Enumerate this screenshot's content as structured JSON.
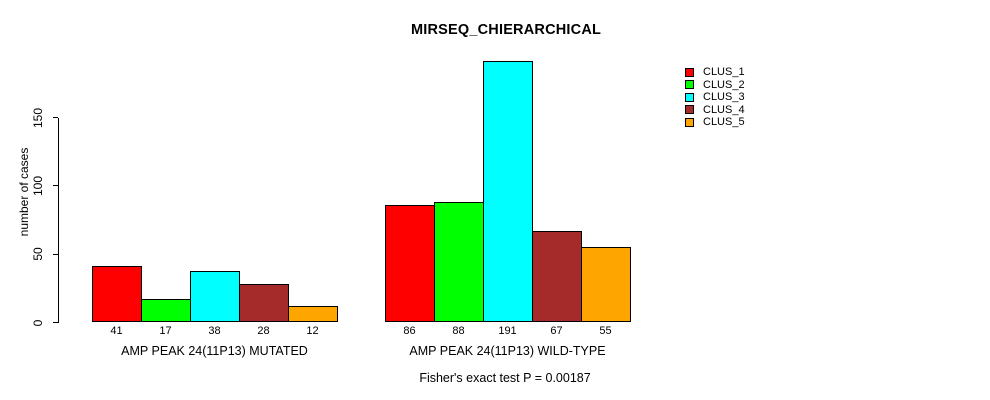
{
  "title": "MIRSEQ_CHIERARCHICAL",
  "y_axis": {
    "label": "number of cases",
    "tick_labels": [
      "0",
      "50",
      "100",
      "150"
    ]
  },
  "footer": "Fisher's exact test P = 0.00187",
  "legend": {
    "position": "right",
    "items": [
      "CLUS_1",
      "CLUS_2",
      "CLUS_3",
      "CLUS_4",
      "CLUS_5"
    ]
  },
  "chart_data": {
    "type": "bar",
    "title": "MIRSEQ_CHIERARCHICAL",
    "xlabel": "",
    "ylabel": "number of cases",
    "ylim": [
      0,
      195
    ],
    "yticks": [
      0,
      50,
      100,
      150
    ],
    "grid": false,
    "legend_position": "right",
    "categories": [
      "AMP PEAK 24(11P13) MUTATED",
      "AMP PEAK 24(11P13) WILD-TYPE"
    ],
    "series": [
      {
        "name": "CLUS_1",
        "color": "#FF0000",
        "values": [
          41,
          86
        ]
      },
      {
        "name": "CLUS_2",
        "color": "#00FF00",
        "values": [
          17,
          88
        ]
      },
      {
        "name": "CLUS_3",
        "color": "#00FFFF",
        "values": [
          38,
          191
        ]
      },
      {
        "name": "CLUS_4",
        "color": "#A52A2A",
        "values": [
          28,
          67
        ]
      },
      {
        "name": "CLUS_5",
        "color": "#FFA500",
        "values": [
          12,
          55
        ]
      }
    ],
    "bar_value_labels_shown": true,
    "annotation": "Fisher's exact test P = 0.00187",
    "colors": {
      "background": "#FFFFFF",
      "bar_border": "#000000",
      "text": "#000000"
    }
  }
}
